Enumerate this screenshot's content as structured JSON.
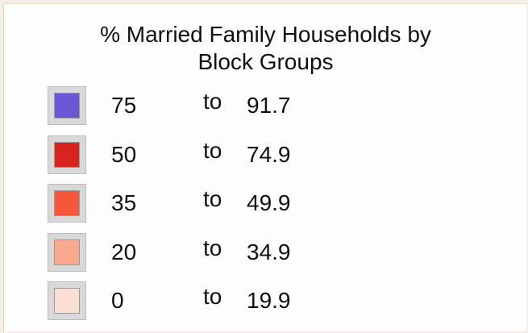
{
  "legend": {
    "title": [
      "% Married Family Households by",
      "Block Groups"
    ],
    "separator": "to",
    "items": [
      {
        "from": 75,
        "to": 91.7,
        "color": "#6b57d6"
      },
      {
        "from": 50,
        "to": 74.9,
        "color": "#d8241f"
      },
      {
        "from": 35,
        "to": 49.9,
        "color": "#f5573b"
      },
      {
        "from": 20,
        "to": 34.9,
        "color": "#f9aa8e"
      },
      {
        "from": 0,
        "to": 19.9,
        "color": "#fcdfd4"
      }
    ]
  }
}
